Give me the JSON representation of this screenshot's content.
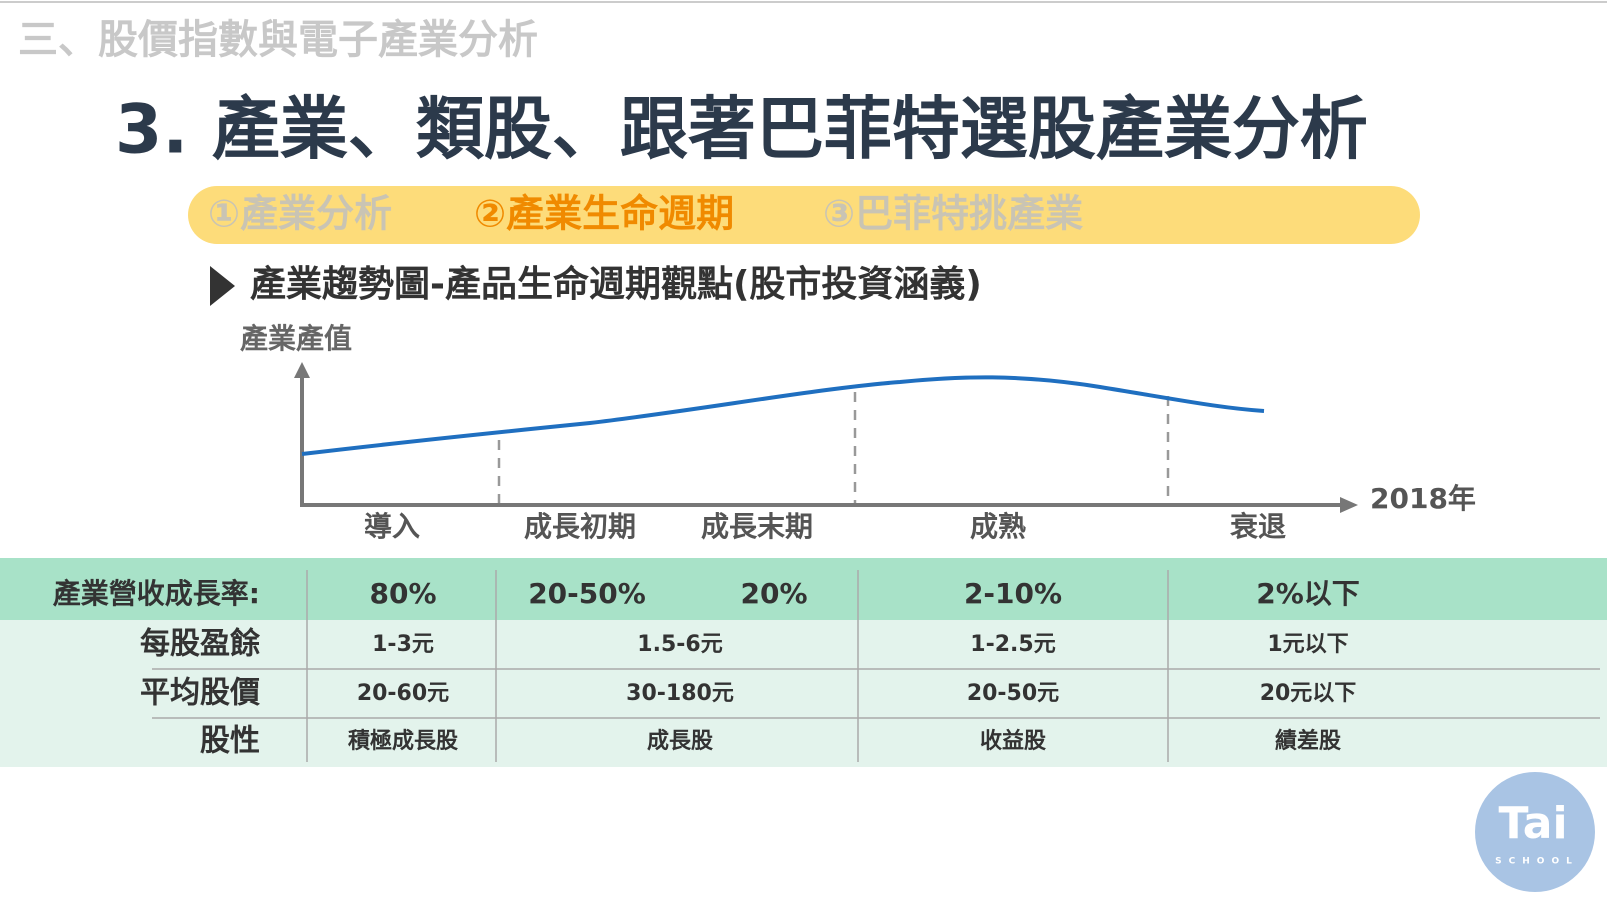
{
  "header": {
    "section": "三、股價指數與電子產業分析",
    "title": "3. 產業、類股、跟著巴菲特選股產業分析"
  },
  "tabs": [
    "①產業分析",
    "②產業生命週期",
    "③巴菲特挑產業"
  ],
  "subtitle": "產業趨勢圖-產品生命週期觀點(股市投資涵義)",
  "diagram": {
    "y_label": "產業產值",
    "x_end_label": "2018年",
    "stages": [
      "導入",
      "成長初期",
      "成長末期",
      "成熟",
      "衰退"
    ]
  },
  "table": {
    "rows": [
      {
        "label": "產業營收成長率:",
        "cells": [
          "80%",
          "20-50%",
          "20%",
          "2-10%",
          "2%以下"
        ]
      },
      {
        "label": "每股盈餘",
        "cells": [
          "1-3元",
          "1.5-6元",
          "1-2.5元",
          "1元以下"
        ]
      },
      {
        "label": "平均股價",
        "cells": [
          "20-60元",
          "30-180元",
          "20-50元",
          "20元以下"
        ]
      },
      {
        "label": "股性",
        "cells": [
          "積極成長股",
          "成長股",
          "收益股",
          "績差股"
        ]
      }
    ]
  },
  "logo": {
    "text": "Tai",
    "sub": "SCHOOL"
  }
}
